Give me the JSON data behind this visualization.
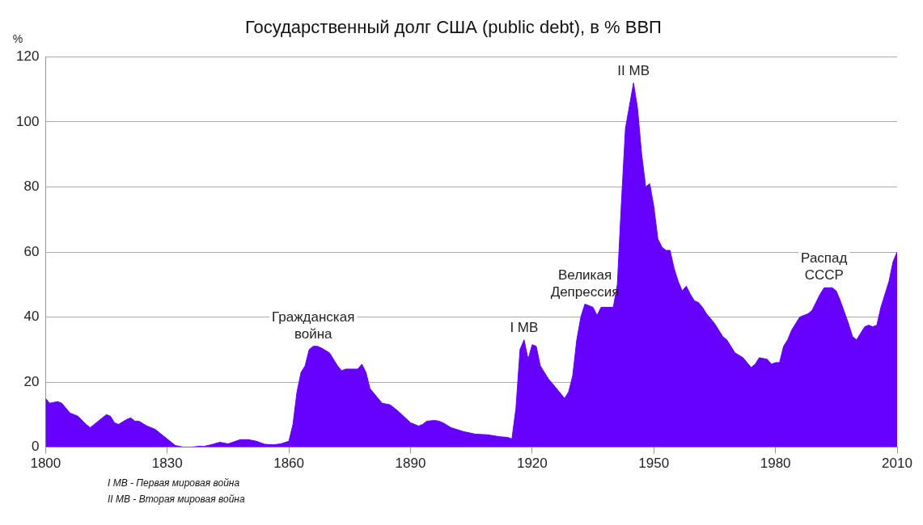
{
  "chart_data": {
    "type": "area",
    "title": "Государственный долг США (public debt), в % ВВП",
    "ylabel": "%",
    "x": [
      1800,
      1801,
      1803,
      1804,
      1806,
      1808,
      1810,
      1811,
      1813,
      1815,
      1816,
      1817,
      1818,
      1820,
      1821,
      1822,
      1823,
      1825,
      1827,
      1829,
      1830,
      1832,
      1834,
      1836,
      1838,
      1839,
      1841,
      1843,
      1845,
      1848,
      1850,
      1852,
      1854,
      1856,
      1858,
      1860,
      1861,
      1862,
      1863,
      1864,
      1865,
      1866,
      1867,
      1868,
      1870,
      1872,
      1873,
      1874,
      1876,
      1877,
      1878,
      1879,
      1880,
      1882,
      1883,
      1885,
      1887,
      1890,
      1892,
      1893,
      1894,
      1896,
      1897,
      1898,
      1900,
      1903,
      1906,
      1909,
      1912,
      1914,
      1915,
      1916,
      1917,
      1918,
      1919,
      1920,
      1921,
      1922,
      1924,
      1926,
      1928,
      1929,
      1930,
      1931,
      1932,
      1933,
      1935,
      1936,
      1937,
      1939,
      1940,
      1941,
      1942,
      1943,
      1944,
      1945,
      1946,
      1947,
      1948,
      1949,
      1950,
      1951,
      1952,
      1953,
      1954,
      1955,
      1956,
      1957,
      1958,
      1959,
      1960,
      1961,
      1962,
      1963,
      1965,
      1967,
      1968,
      1970,
      1972,
      1973,
      1974,
      1975,
      1976,
      1978,
      1979,
      1980,
      1981,
      1982,
      1983,
      1984,
      1986,
      1988,
      1989,
      1991,
      1992,
      1994,
      1995,
      1996,
      1998,
      1999,
      2000,
      2001,
      2002,
      2003,
      2004,
      2005,
      2006,
      2008,
      2009,
      2010
    ],
    "series": [
      {
        "color": "#6600ff",
        "values": [
          15,
          13.5,
          14,
          13.5,
          10.5,
          9.5,
          7,
          6,
          8,
          10,
          9.5,
          7.5,
          7,
          8.5,
          9,
          8,
          8,
          6.5,
          5.5,
          3.5,
          2.5,
          0.5,
          0,
          0,
          0.3,
          0.2,
          0.8,
          1.5,
          1,
          2.3,
          2.3,
          1.8,
          0.9,
          0.7,
          1,
          1.8,
          7,
          17,
          23,
          25,
          30,
          31,
          31,
          30.5,
          29,
          25,
          23.5,
          24,
          24,
          24,
          25.5,
          23,
          18,
          15,
          13.5,
          13,
          11,
          7.5,
          6.5,
          7,
          8,
          8.2,
          8,
          7.5,
          6,
          4.8,
          4,
          3.8,
          3.2,
          3,
          2.5,
          12,
          30,
          33,
          27,
          31.5,
          31,
          25,
          21,
          18,
          15,
          17,
          22,
          33,
          40,
          44,
          43,
          40.5,
          43,
          43,
          43,
          50,
          75,
          98,
          105,
          112,
          104,
          90,
          80,
          81,
          74,
          64,
          61.5,
          60.5,
          60.5,
          55,
          51,
          48,
          49.5,
          47,
          45,
          44.5,
          43,
          41,
          38,
          34,
          33,
          29,
          27.5,
          26,
          24.5,
          25.5,
          27.5,
          27,
          25.5,
          26,
          26,
          31,
          33,
          36,
          40,
          41,
          42,
          47,
          49,
          49,
          48,
          45,
          38,
          34,
          33,
          35,
          37,
          37.5,
          37,
          37.5,
          43,
          51,
          57,
          60
        ]
      }
    ],
    "xlim": [
      1800,
      2010
    ],
    "xticks": [
      1800,
      1830,
      1860,
      1890,
      1920,
      1950,
      1980,
      2010
    ],
    "ylim": [
      0,
      120
    ],
    "yticks": [
      0,
      20,
      40,
      60,
      80,
      100,
      120
    ],
    "grid": "y",
    "legend": false,
    "annotations": [
      {
        "text": "Гражданская\nвойна",
        "x": 1866,
        "y": 31
      },
      {
        "text": "I МВ",
        "x": 1918,
        "y": 33
      },
      {
        "text": "Великая\nДепрессия",
        "x": 1933,
        "y": 44
      },
      {
        "text": "II МВ",
        "x": 1945,
        "y": 112
      },
      {
        "text": "Распад\nСССР",
        "x": 1992,
        "y": 49
      },
      "I МВ - Первая мировая война",
      "II МВ - Вторая мировая война"
    ]
  }
}
